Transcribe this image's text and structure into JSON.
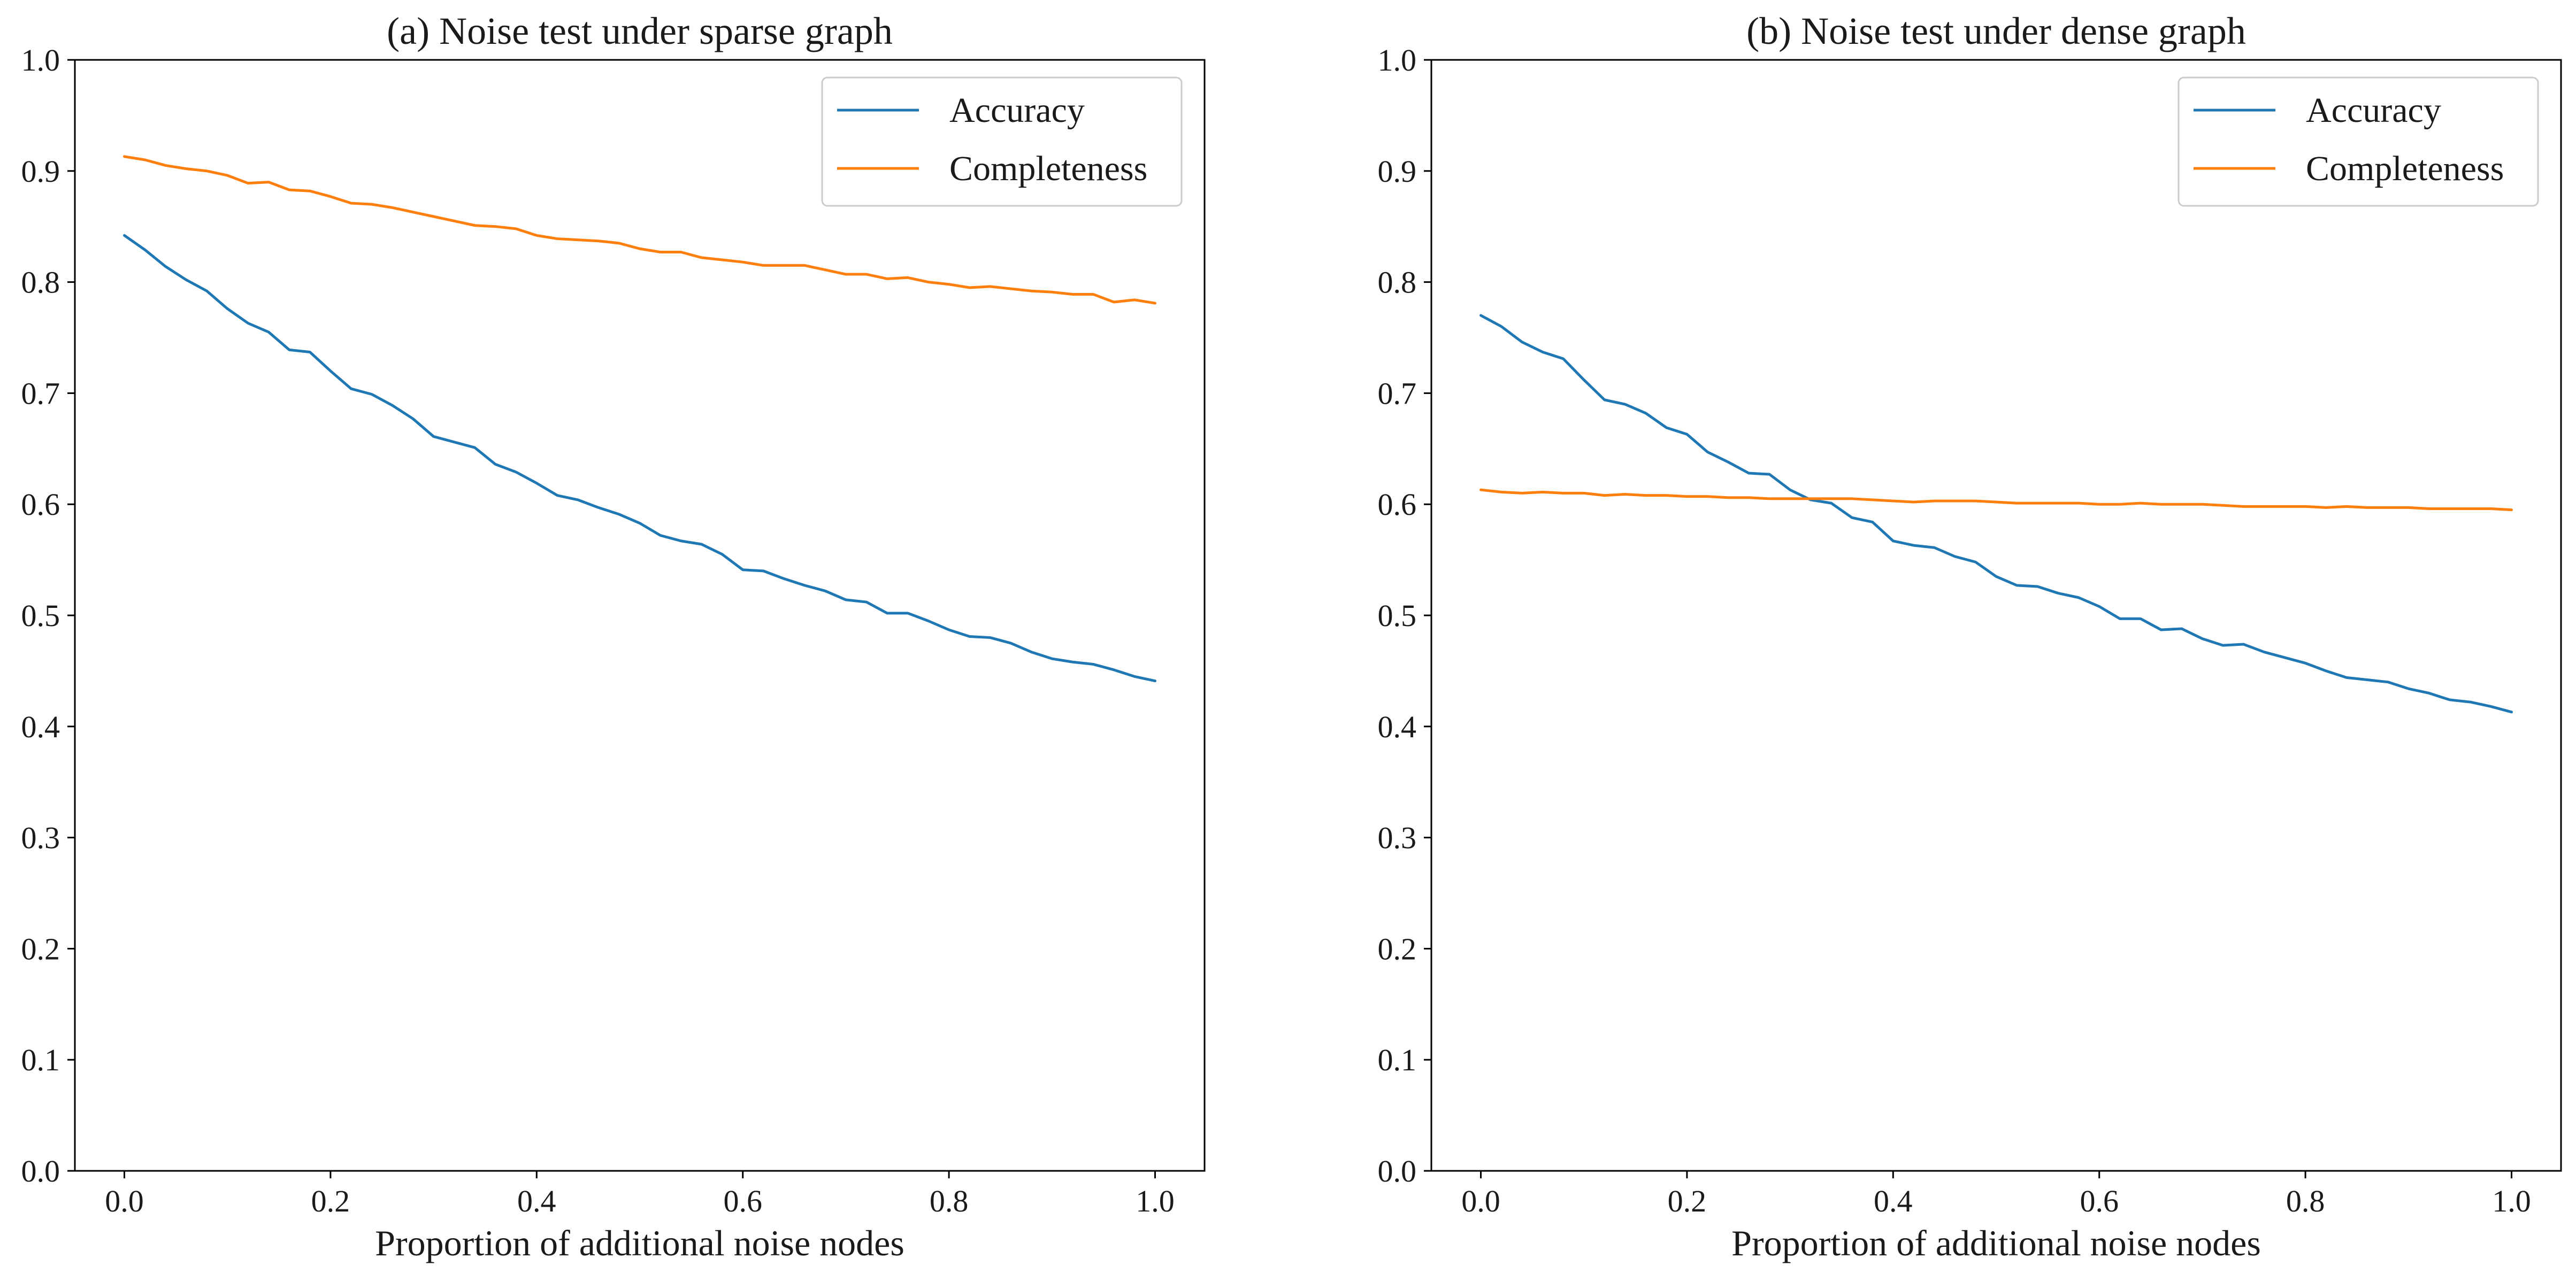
{
  "chart_data": [
    {
      "type": "line",
      "title": "(a) Noise test under sparse graph",
      "xlabel": "Proportion of additional noise nodes",
      "ylabel": "",
      "xlim": [
        -0.048,
        1.048
      ],
      "ylim": [
        0.0,
        1.0
      ],
      "xticks": [
        0.0,
        0.2,
        0.4,
        0.6,
        0.8,
        1.0
      ],
      "xtick_labels": [
        "0.0",
        "0.2",
        "0.4",
        "0.6",
        "0.8",
        "1.0"
      ],
      "yticks": [
        0.0,
        0.1,
        0.2,
        0.3,
        0.4,
        0.5,
        0.6,
        0.7,
        0.8,
        0.9,
        1.0
      ],
      "ytick_labels": [
        "0.0",
        "0.1",
        "0.2",
        "0.3",
        "0.4",
        "0.5",
        "0.6",
        "0.7",
        "0.8",
        "0.9",
        "1.0"
      ],
      "legend_position": "top-right",
      "x": [
        0.0,
        0.02,
        0.04,
        0.06,
        0.08,
        0.1,
        0.12,
        0.14,
        0.16,
        0.18,
        0.2,
        0.22,
        0.24,
        0.26,
        0.28,
        0.3,
        0.32,
        0.34,
        0.36,
        0.38,
        0.4,
        0.42,
        0.44,
        0.46,
        0.48,
        0.5,
        0.52,
        0.54,
        0.56,
        0.58,
        0.6,
        0.62,
        0.64,
        0.66,
        0.68,
        0.7,
        0.72,
        0.74,
        0.76,
        0.78,
        0.8,
        0.82,
        0.84,
        0.86,
        0.88,
        0.9,
        0.92,
        0.94,
        0.96,
        0.98,
        1.0
      ],
      "series": [
        {
          "name": "Accuracy",
          "color": "#1f77b4",
          "values": [
            0.842,
            0.829,
            0.814,
            0.802,
            0.792,
            0.776,
            0.763,
            0.755,
            0.739,
            0.737,
            0.72,
            0.704,
            0.699,
            0.689,
            0.677,
            0.661,
            0.656,
            0.651,
            0.636,
            0.629,
            0.619,
            0.608,
            0.604,
            0.597,
            0.591,
            0.583,
            0.572,
            0.567,
            0.564,
            0.555,
            0.541,
            0.54,
            0.533,
            0.527,
            0.522,
            0.514,
            0.512,
            0.502,
            0.502,
            0.495,
            0.487,
            0.481,
            0.48,
            0.475,
            0.467,
            0.461,
            0.458,
            0.456,
            0.451,
            0.445,
            0.441
          ]
        },
        {
          "name": "Completeness",
          "color": "#ff7f0e",
          "values": [
            0.913,
            0.91,
            0.905,
            0.902,
            0.9,
            0.896,
            0.889,
            0.89,
            0.883,
            0.882,
            0.877,
            0.871,
            0.87,
            0.867,
            0.863,
            0.859,
            0.855,
            0.851,
            0.85,
            0.848,
            0.842,
            0.839,
            0.838,
            0.837,
            0.835,
            0.83,
            0.827,
            0.827,
            0.822,
            0.82,
            0.818,
            0.815,
            0.815,
            0.815,
            0.811,
            0.807,
            0.807,
            0.803,
            0.804,
            0.8,
            0.798,
            0.795,
            0.796,
            0.794,
            0.792,
            0.791,
            0.789,
            0.789,
            0.782,
            0.784,
            0.781
          ]
        }
      ]
    },
    {
      "type": "line",
      "title": "(b) Noise test under dense graph",
      "xlabel": "Proportion of additional noise nodes",
      "ylabel": "",
      "xlim": [
        -0.048,
        1.048
      ],
      "ylim": [
        0.0,
        1.0
      ],
      "xticks": [
        0.0,
        0.2,
        0.4,
        0.6,
        0.8,
        1.0
      ],
      "xtick_labels": [
        "0.0",
        "0.2",
        "0.4",
        "0.6",
        "0.8",
        "1.0"
      ],
      "yticks": [
        0.0,
        0.1,
        0.2,
        0.3,
        0.4,
        0.5,
        0.6,
        0.7,
        0.8,
        0.9,
        1.0
      ],
      "ytick_labels": [
        "0.0",
        "0.1",
        "0.2",
        "0.3",
        "0.4",
        "0.5",
        "0.6",
        "0.7",
        "0.8",
        "0.9",
        "1.0"
      ],
      "legend_position": "top-right",
      "x": [
        0.0,
        0.02,
        0.04,
        0.06,
        0.08,
        0.1,
        0.12,
        0.14,
        0.16,
        0.18,
        0.2,
        0.22,
        0.24,
        0.26,
        0.28,
        0.3,
        0.32,
        0.34,
        0.36,
        0.38,
        0.4,
        0.42,
        0.44,
        0.46,
        0.48,
        0.5,
        0.52,
        0.54,
        0.56,
        0.58,
        0.6,
        0.62,
        0.64,
        0.66,
        0.68,
        0.7,
        0.72,
        0.74,
        0.76,
        0.78,
        0.8,
        0.82,
        0.84,
        0.86,
        0.88,
        0.9,
        0.92,
        0.94,
        0.96,
        0.98,
        1.0
      ],
      "series": [
        {
          "name": "Accuracy",
          "color": "#1f77b4",
          "values": [
            0.77,
            0.76,
            0.746,
            0.737,
            0.731,
            0.712,
            0.694,
            0.69,
            0.682,
            0.669,
            0.663,
            0.647,
            0.638,
            0.628,
            0.627,
            0.613,
            0.604,
            0.601,
            0.588,
            0.584,
            0.567,
            0.563,
            0.561,
            0.553,
            0.548,
            0.535,
            0.527,
            0.526,
            0.52,
            0.516,
            0.508,
            0.497,
            0.497,
            0.487,
            0.488,
            0.479,
            0.473,
            0.474,
            0.467,
            0.462,
            0.457,
            0.45,
            0.444,
            0.442,
            0.44,
            0.434,
            0.43,
            0.424,
            0.422,
            0.418,
            0.413
          ]
        },
        {
          "name": "Completeness",
          "color": "#ff7f0e",
          "values": [
            0.613,
            0.611,
            0.61,
            0.611,
            0.61,
            0.61,
            0.608,
            0.609,
            0.608,
            0.608,
            0.607,
            0.607,
            0.606,
            0.606,
            0.605,
            0.605,
            0.605,
            0.605,
            0.605,
            0.604,
            0.603,
            0.602,
            0.603,
            0.603,
            0.603,
            0.602,
            0.601,
            0.601,
            0.601,
            0.601,
            0.6,
            0.6,
            0.601,
            0.6,
            0.6,
            0.6,
            0.599,
            0.598,
            0.598,
            0.598,
            0.598,
            0.597,
            0.598,
            0.597,
            0.597,
            0.597,
            0.596,
            0.596,
            0.596,
            0.596,
            0.595
          ]
        }
      ]
    }
  ]
}
